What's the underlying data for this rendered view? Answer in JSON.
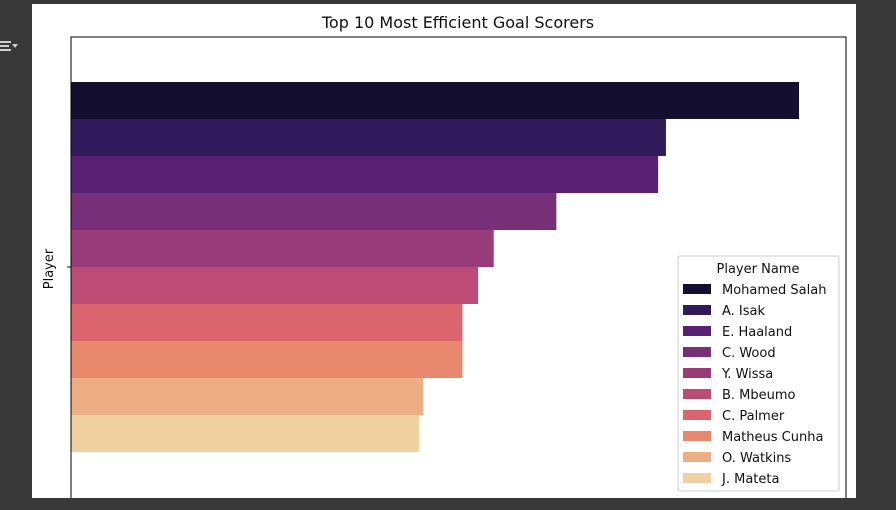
{
  "toolbar": {
    "output_icon": "collapse-output-icon"
  },
  "chart_data": {
    "type": "bar",
    "orientation": "horizontal",
    "title": "Top 10 Most Efficient Goal Scorers",
    "ylabel": "Player",
    "xlabel": "",
    "legend_title": "Player Name",
    "legend_position": "lower-right",
    "grid": false,
    "series": [
      {
        "name": "Mohamed Salah",
        "value": 0.93,
        "color": "#140f2e"
      },
      {
        "name": "A. Isak",
        "value": 0.76,
        "color": "#311a5a"
      },
      {
        "name": "E. Haaland",
        "value": 0.75,
        "color": "#582073"
      },
      {
        "name": "C. Wood",
        "value": 0.62,
        "color": "#772f78"
      },
      {
        "name": "Y. Wissa",
        "value": 0.54,
        "color": "#973c79"
      },
      {
        "name": "B. Mbeumo",
        "value": 0.52,
        "color": "#bc4c74"
      },
      {
        "name": "C. Palmer",
        "value": 0.5,
        "color": "#da656f"
      },
      {
        "name": "Matheus Cunha",
        "value": 0.5,
        "color": "#e8896d"
      },
      {
        "name": "O. Watkins",
        "value": 0.45,
        "color": "#eeae84"
      },
      {
        "name": "J. Mateta",
        "value": 0.445,
        "color": "#f1d1a2"
      }
    ],
    "xlim": [
      0,
      0.99
    ],
    "y_ticks": [
      ""
    ]
  }
}
